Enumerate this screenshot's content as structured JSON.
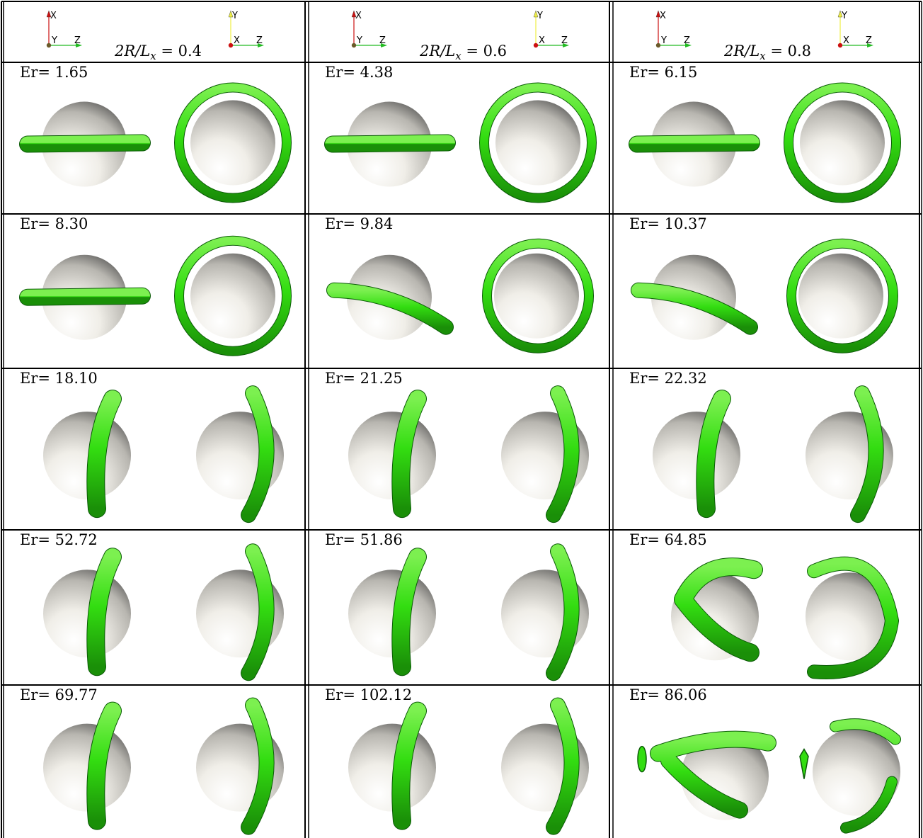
{
  "columns": [
    {
      "header": "2R/L",
      "subscript": "x",
      "value": "= 0.4"
    },
    {
      "header": "2R/L",
      "subscript": "x",
      "value": "= 0.6"
    },
    {
      "header": "2R/L",
      "subscript": "x",
      "value": "= 0.8"
    }
  ],
  "axes": {
    "left": {
      "up": "X",
      "origin": "Y",
      "right": "Z"
    },
    "right": {
      "up": "Y",
      "origin": "X",
      "right": "Z"
    }
  },
  "colors": {
    "ring": "#33dd11",
    "ring_dark": "#0a5a06",
    "sphere_light": "#ffffff",
    "sphere_dark": "#3a3a3a",
    "axis_x": "#cc1111",
    "axis_y": "#eeee44",
    "axis_z": "#22bb22"
  },
  "rows": [
    {
      "cells": [
        {
          "label": "Er= 1.65",
          "shape": "band"
        },
        {
          "label": "Er= 4.38",
          "shape": "band"
        },
        {
          "label": "Er= 6.15",
          "shape": "band"
        }
      ]
    },
    {
      "cells": [
        {
          "label": "Er= 8.30",
          "shape": "band"
        },
        {
          "label": "Er= 9.84",
          "shape": "tilted"
        },
        {
          "label": "Er= 10.37",
          "shape": "tilted"
        }
      ]
    },
    {
      "cells": [
        {
          "label": "Er= 18.10",
          "shape": "arc"
        },
        {
          "label": "Er= 21.25",
          "shape": "arc"
        },
        {
          "label": "Er= 22.32",
          "shape": "arc"
        }
      ]
    },
    {
      "cells": [
        {
          "label": "Er= 52.72",
          "shape": "arc"
        },
        {
          "label": "Er= 51.86",
          "shape": "arc"
        },
        {
          "label": "Er= 64.85",
          "shape": "wrap"
        }
      ]
    },
    {
      "cells": [
        {
          "label": "Er= 69.77",
          "shape": "arc"
        },
        {
          "label": "Er= 102.12",
          "shape": "arc"
        },
        {
          "label": "Er= 86.06",
          "shape": "broken"
        }
      ]
    }
  ]
}
